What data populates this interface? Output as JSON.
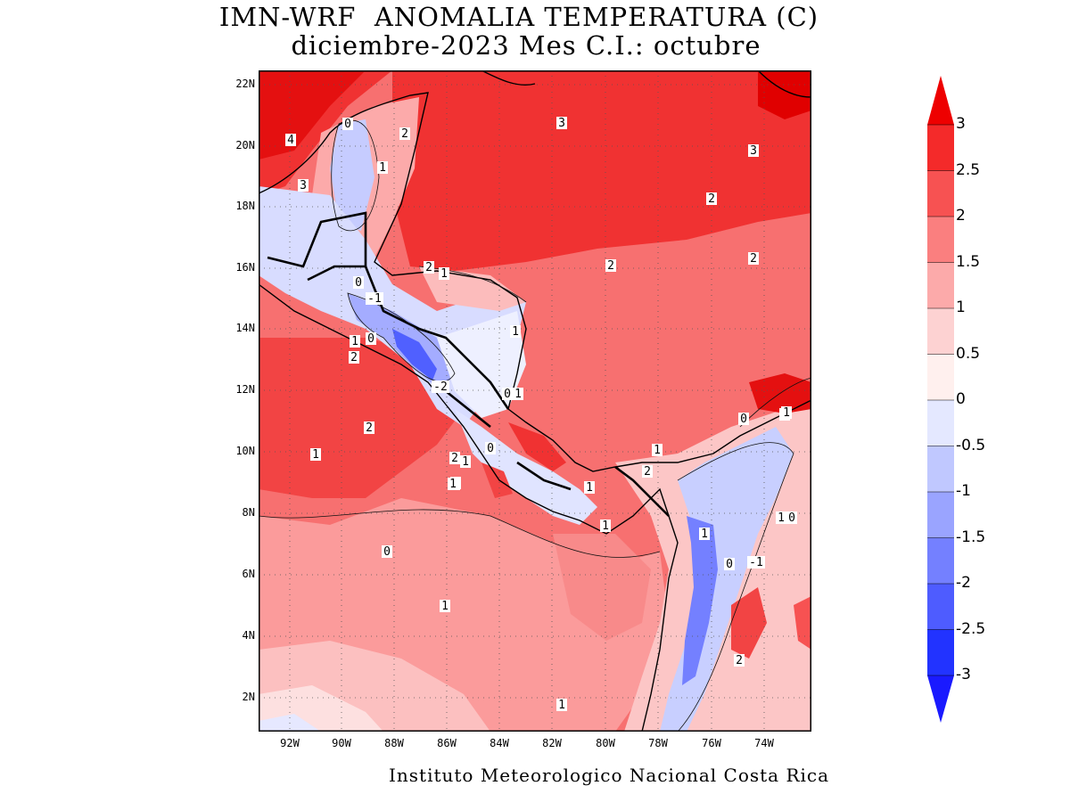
{
  "title": {
    "line1": "IMN-WRF  ANOMALIA TEMPERATURA (C)",
    "line2": "diciembre-2023 Mes C.I.: octubre"
  },
  "footer": "Instituto Meteorologico Nacional Costa Rica",
  "map": {
    "lat_labels": [
      "22N",
      "20N",
      "18N",
      "16N",
      "14N",
      "12N",
      "10N",
      "8N",
      "6N",
      "4N",
      "2N"
    ],
    "lon_labels": [
      "92W",
      "90W",
      "88W",
      "86W",
      "84W",
      "82W",
      "80W",
      "78W",
      "76W",
      "74W"
    ],
    "contour_labels": [
      "4",
      "3",
      "0",
      "2",
      "1",
      "3",
      "3",
      "2",
      "2",
      "2",
      "2",
      "1",
      "0",
      "-1",
      "0",
      "1",
      "2",
      "1",
      "0",
      "1",
      "-2",
      "2",
      "1",
      "0",
      "1",
      "2",
      "1",
      "1",
      "1",
      "0",
      "1",
      "2",
      "1",
      "0",
      "1",
      "1",
      "0",
      "-1",
      "0",
      "0",
      "1",
      "1",
      "2",
      "1",
      "1"
    ]
  },
  "colorbar": {
    "labels": [
      "3",
      "2.5",
      "2",
      "1.5",
      "1",
      "0.5",
      "0",
      "-0.5",
      "-1",
      "-1.5",
      "-2",
      "-2.5",
      "-3"
    ],
    "colors": [
      "#e80000",
      "#f42a2a",
      "#f75252",
      "#fa7f7f",
      "#fcaaaa",
      "#fdd2d2",
      "#fff0ee",
      "#e4e8ff",
      "#c0c8ff",
      "#9aa4ff",
      "#7480ff",
      "#4e5cff",
      "#2233ff",
      "#1a24ff"
    ],
    "ends": {
      "top": "#ee0000",
      "bottom": "#1a1aff"
    }
  }
}
